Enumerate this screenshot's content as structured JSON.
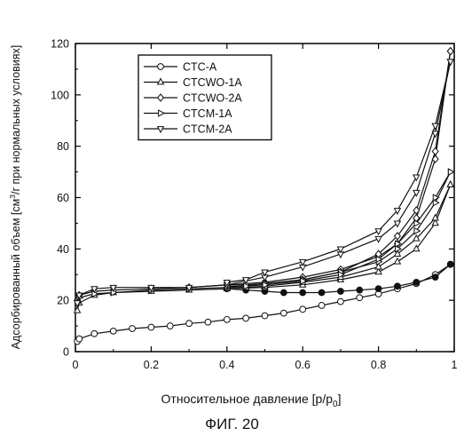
{
  "figure_label": "ФИГ. 20",
  "chart_data": {
    "type": "line",
    "title": "",
    "xlabel_main": "Относительное давление [p/p",
    "xlabel_sub": "0",
    "xlabel_end": "]",
    "ylabel_a": "Адсорбированный объем [см",
    "ylabel_sup": "3",
    "ylabel_b": "/г при нормальных условиях]",
    "xlim": [
      0,
      1
    ],
    "ylim": [
      0,
      120
    ],
    "xticks": [
      0,
      0.2,
      0.4,
      0.6,
      0.8,
      1
    ],
    "xtick_labels": [
      "0",
      "0.2",
      "0.4",
      "0.6",
      "0.8",
      "1"
    ],
    "yticks": [
      0,
      20,
      40,
      60,
      80,
      100,
      120
    ],
    "ytick_labels": [
      "0",
      "20",
      "40",
      "60",
      "80",
      "100",
      "120"
    ],
    "grid": false,
    "legend_position": "top-left",
    "series": [
      {
        "name": "CTC-A",
        "marker": "circle",
        "adsorption": [
          [
            0.005,
            4
          ],
          [
            0.01,
            5
          ],
          [
            0.05,
            7
          ],
          [
            0.1,
            8
          ],
          [
            0.15,
            9
          ],
          [
            0.2,
            9.5
          ],
          [
            0.25,
            10
          ],
          [
            0.3,
            11
          ],
          [
            0.35,
            11.5
          ],
          [
            0.4,
            12.5
          ],
          [
            0.45,
            13
          ],
          [
            0.5,
            14
          ],
          [
            0.55,
            15
          ],
          [
            0.6,
            16.5
          ],
          [
            0.65,
            18
          ],
          [
            0.7,
            19.5
          ],
          [
            0.75,
            21
          ],
          [
            0.8,
            22.5
          ],
          [
            0.85,
            24.5
          ],
          [
            0.9,
            26.5
          ],
          [
            0.95,
            30
          ],
          [
            0.99,
            34
          ]
        ],
        "desorption": [
          [
            0.99,
            34
          ],
          [
            0.95,
            29
          ],
          [
            0.9,
            27
          ],
          [
            0.85,
            25.5
          ],
          [
            0.8,
            24.5
          ],
          [
            0.75,
            24
          ],
          [
            0.7,
            23.5
          ],
          [
            0.65,
            23
          ],
          [
            0.6,
            23
          ],
          [
            0.55,
            23
          ],
          [
            0.5,
            23.5
          ],
          [
            0.45,
            24
          ],
          [
            0.4,
            24.5
          ]
        ]
      },
      {
        "name": "CTCWO-1A",
        "marker": "triangle-up",
        "adsorption": [
          [
            0.005,
            16
          ],
          [
            0.01,
            19
          ],
          [
            0.05,
            22
          ],
          [
            0.1,
            23
          ],
          [
            0.2,
            23.5
          ],
          [
            0.3,
            24
          ],
          [
            0.4,
            24.5
          ],
          [
            0.5,
            25
          ],
          [
            0.6,
            26
          ],
          [
            0.7,
            28
          ],
          [
            0.8,
            31
          ],
          [
            0.85,
            35
          ],
          [
            0.9,
            40
          ],
          [
            0.95,
            50
          ],
          [
            0.99,
            65
          ]
        ],
        "desorption": [
          [
            0.99,
            65
          ],
          [
            0.95,
            52
          ],
          [
            0.9,
            44
          ],
          [
            0.85,
            38
          ],
          [
            0.8,
            33
          ],
          [
            0.7,
            29
          ],
          [
            0.6,
            27
          ],
          [
            0.5,
            25.5
          ],
          [
            0.45,
            25
          ],
          [
            0.4,
            25
          ]
        ]
      },
      {
        "name": "CTCWO-2A",
        "marker": "diamond",
        "adsorption": [
          [
            0.005,
            20
          ],
          [
            0.01,
            22
          ],
          [
            0.05,
            23.5
          ],
          [
            0.1,
            24
          ],
          [
            0.2,
            24.5
          ],
          [
            0.3,
            25
          ],
          [
            0.4,
            26
          ],
          [
            0.5,
            27
          ],
          [
            0.6,
            29
          ],
          [
            0.7,
            32
          ],
          [
            0.8,
            37
          ],
          [
            0.85,
            42
          ],
          [
            0.9,
            52
          ],
          [
            0.95,
            75
          ],
          [
            0.99,
            117
          ]
        ],
        "desorption": [
          [
            0.99,
            117
          ],
          [
            0.95,
            78
          ],
          [
            0.9,
            55
          ],
          [
            0.85,
            45
          ],
          [
            0.8,
            38
          ],
          [
            0.7,
            31
          ],
          [
            0.6,
            28
          ],
          [
            0.5,
            26.5
          ],
          [
            0.45,
            26
          ],
          [
            0.4,
            26
          ]
        ]
      },
      {
        "name": "CTCM-1A",
        "marker": "triangle-right",
        "adsorption": [
          [
            0.005,
            19
          ],
          [
            0.01,
            21
          ],
          [
            0.05,
            22.5
          ],
          [
            0.1,
            23
          ],
          [
            0.2,
            24
          ],
          [
            0.3,
            24.5
          ],
          [
            0.4,
            25
          ],
          [
            0.5,
            26.5
          ],
          [
            0.6,
            28
          ],
          [
            0.7,
            31
          ],
          [
            0.8,
            35
          ],
          [
            0.85,
            40
          ],
          [
            0.9,
            47
          ],
          [
            0.95,
            58
          ],
          [
            0.99,
            70
          ]
        ],
        "desorption": [
          [
            0.99,
            70
          ],
          [
            0.95,
            60
          ],
          [
            0.9,
            50
          ],
          [
            0.85,
            42
          ],
          [
            0.8,
            36
          ],
          [
            0.7,
            30
          ],
          [
            0.6,
            27.5
          ],
          [
            0.5,
            26
          ],
          [
            0.45,
            25.5
          ],
          [
            0.4,
            25.5
          ]
        ]
      },
      {
        "name": "CTCM-2A",
        "marker": "triangle-down",
        "adsorption": [
          [
            0.005,
            19
          ],
          [
            0.01,
            22
          ],
          [
            0.05,
            24.5
          ],
          [
            0.1,
            25
          ],
          [
            0.2,
            25
          ],
          [
            0.3,
            25
          ],
          [
            0.4,
            26
          ],
          [
            0.5,
            29
          ],
          [
            0.6,
            33
          ],
          [
            0.7,
            38
          ],
          [
            0.8,
            44
          ],
          [
            0.85,
            50
          ],
          [
            0.9,
            62
          ],
          [
            0.95,
            85
          ],
          [
            0.99,
            113
          ]
        ],
        "desorption": [
          [
            0.99,
            113
          ],
          [
            0.95,
            88
          ],
          [
            0.9,
            68
          ],
          [
            0.85,
            55
          ],
          [
            0.8,
            47
          ],
          [
            0.7,
            40
          ],
          [
            0.6,
            35
          ],
          [
            0.5,
            31
          ],
          [
            0.45,
            28
          ],
          [
            0.4,
            27
          ]
        ]
      }
    ]
  }
}
